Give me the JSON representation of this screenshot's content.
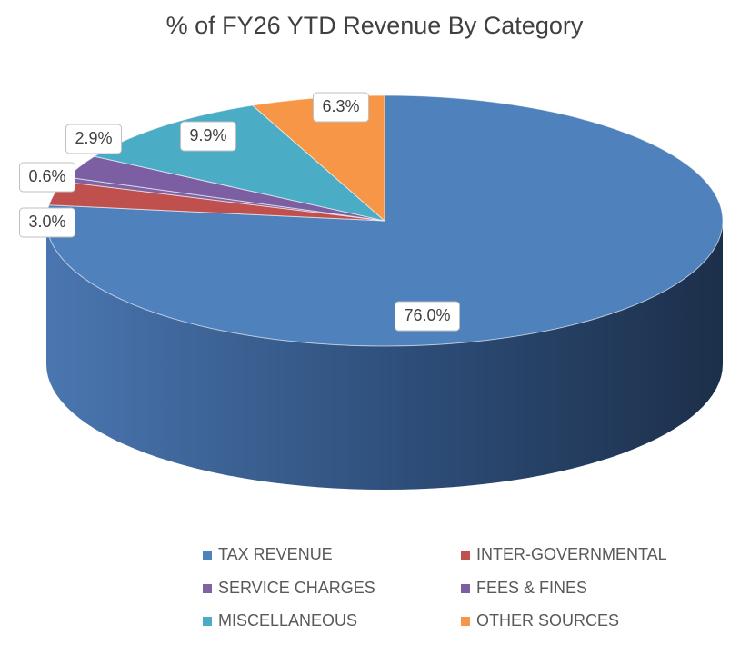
{
  "chart_data": {
    "type": "pie",
    "title": "% of FY26 YTD Revenue By Category",
    "categories": [
      "TAX REVENUE",
      "INTER-GOVERNMENTAL",
      "SERVICE CHARGES",
      "FEES & FINES",
      "MISCELLANEOUS",
      "OTHER SOURCES"
    ],
    "values": [
      76.0,
      3.0,
      0.6,
      2.9,
      9.9,
      6.3
    ],
    "value_labels": [
      "76.0%",
      "3.0%",
      "0.6%",
      "2.9%",
      "9.9%",
      "6.3%"
    ],
    "colors": [
      "#4f81bd",
      "#c0504d",
      "#8064a2",
      "#7c5fa3",
      "#4bacc6",
      "#f79646"
    ],
    "legend": "bottom"
  }
}
